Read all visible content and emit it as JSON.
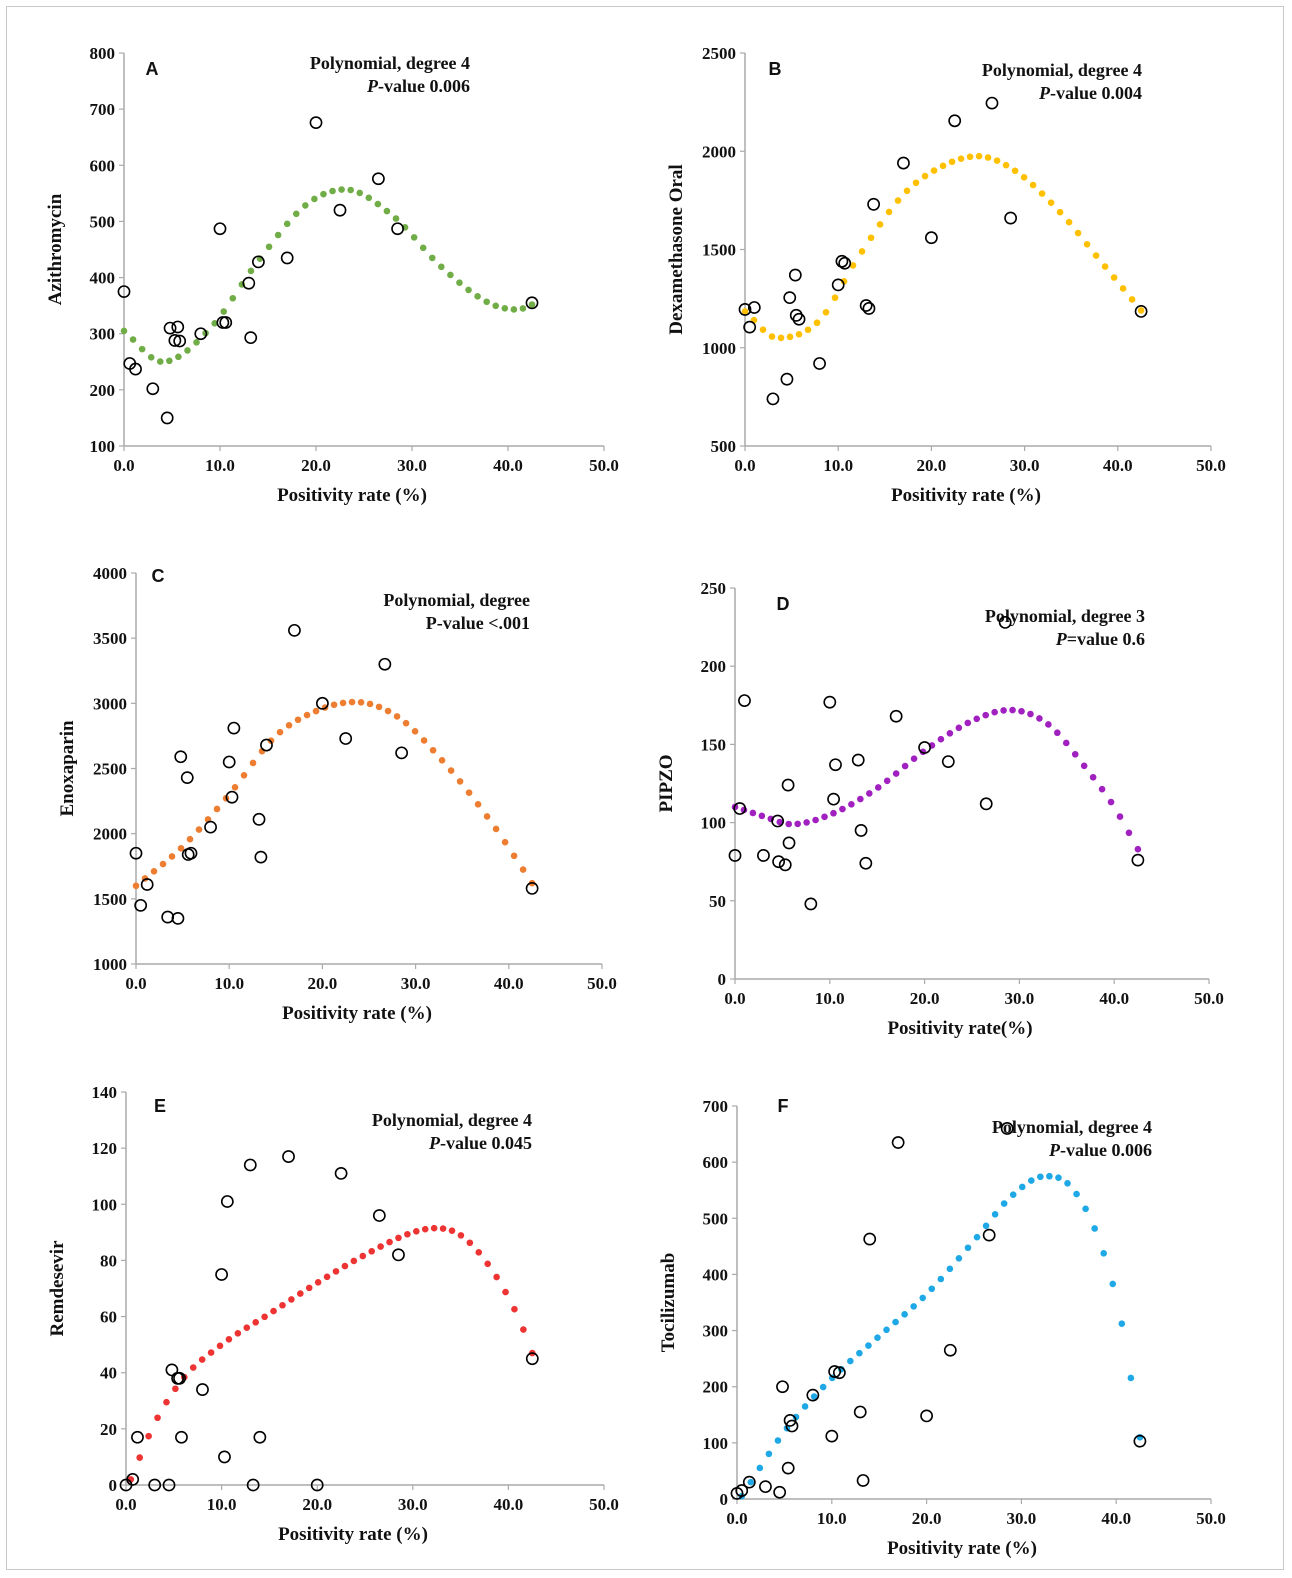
{
  "chart_data": [
    {
      "panel": "A",
      "type": "scatter",
      "ylabel": "Azithromycin",
      "xlabel": "Positivity rate (%)",
      "xlim": [
        0,
        50
      ],
      "ylim": [
        100,
        800
      ],
      "xticks": [
        "0.0",
        "10.0",
        "20.0",
        "30.0",
        "40.0",
        "50.0"
      ],
      "yticks": [
        "100",
        "200",
        "300",
        "400",
        "500",
        "600",
        "700",
        "800"
      ],
      "annotation": [
        "Polynomial, degree 4",
        "P-value 0.006"
      ],
      "trend_color": "#70ad47",
      "trend": {
        "xrange": [
          0,
          42.5
        ],
        "points": [
          [
            0,
            305
          ],
          [
            4,
            250
          ],
          [
            9,
            310
          ],
          [
            14,
            430
          ],
          [
            19,
            530
          ],
          [
            23,
            557
          ],
          [
            28,
            510
          ],
          [
            33,
            420
          ],
          [
            38,
            355
          ],
          [
            41,
            343
          ],
          [
            42.5,
            352
          ]
        ]
      },
      "points": [
        [
          0,
          375
        ],
        [
          0.6,
          247
        ],
        [
          1.2,
          237
        ],
        [
          3,
          202
        ],
        [
          4.5,
          150
        ],
        [
          4.8,
          310
        ],
        [
          5.3,
          288
        ],
        [
          5.6,
          312
        ],
        [
          5.8,
          287
        ],
        [
          8,
          300
        ],
        [
          10,
          487
        ],
        [
          10.3,
          320
        ],
        [
          10.6,
          320
        ],
        [
          13,
          390
        ],
        [
          13.2,
          293
        ],
        [
          14,
          428
        ],
        [
          17,
          435
        ],
        [
          20,
          676
        ],
        [
          22.5,
          520
        ],
        [
          26.5,
          576
        ],
        [
          28.5,
          487
        ],
        [
          42.5,
          355
        ]
      ]
    },
    {
      "panel": "B",
      "type": "scatter",
      "ylabel": "Dexamethasone Oral",
      "xlabel": "Positivity rate (%)",
      "xlim": [
        0,
        50
      ],
      "ylim": [
        500,
        2500
      ],
      "xticks": [
        "0.0",
        "10.0",
        "20.0",
        "30.0",
        "40.0",
        "50.0"
      ],
      "yticks": [
        "500",
        "1000",
        "1500",
        "2000",
        "2500"
      ],
      "annotation": [
        "Polynomial, degree 4",
        "P-value 0.004"
      ],
      "trend_color": "#ffc000",
      "trend": {
        "xrange": [
          0,
          42.5
        ],
        "points": [
          [
            0,
            1185
          ],
          [
            3.5,
            1050
          ],
          [
            8,
            1140
          ],
          [
            12,
            1450
          ],
          [
            17,
            1780
          ],
          [
            21,
            1920
          ],
          [
            25,
            1975
          ],
          [
            29,
            1900
          ],
          [
            34,
            1680
          ],
          [
            38,
            1450
          ],
          [
            42.5,
            1190
          ]
        ]
      },
      "points": [
        [
          0,
          1195
        ],
        [
          0.5,
          1105
        ],
        [
          1,
          1205
        ],
        [
          3,
          740
        ],
        [
          4.5,
          840
        ],
        [
          4.8,
          1255
        ],
        [
          5.4,
          1370
        ],
        [
          5.5,
          1165
        ],
        [
          5.8,
          1145
        ],
        [
          8,
          920
        ],
        [
          10,
          1320
        ],
        [
          10.4,
          1440
        ],
        [
          10.7,
          1430
        ],
        [
          13,
          1215
        ],
        [
          13.3,
          1200
        ],
        [
          13.8,
          1730
        ],
        [
          17,
          1940
        ],
        [
          20,
          1560
        ],
        [
          22.5,
          2155
        ],
        [
          26.5,
          2245
        ],
        [
          28.5,
          1660
        ],
        [
          42.5,
          1185
        ]
      ]
    },
    {
      "panel": "C",
      "type": "scatter",
      "ylabel": "Enoxaparin",
      "xlabel": "Positivity rate (%)",
      "xlim": [
        0,
        50
      ],
      "ylim": [
        1000,
        4000
      ],
      "xticks": [
        "0.0",
        "10.0",
        "20.0",
        "30.0",
        "40.0",
        "50.0"
      ],
      "yticks": [
        "1000",
        "1500",
        "2000",
        "2500",
        "3000",
        "3500",
        "4000"
      ],
      "annotation": [
        "Polynomial, degree",
        "P-value <.001"
      ],
      "trend_color": "#ed7d31",
      "trend": {
        "xrange": [
          0,
          42.5
        ],
        "points": [
          [
            0,
            1600
          ],
          [
            5,
            1900
          ],
          [
            10,
            2300
          ],
          [
            15,
            2750
          ],
          [
            20,
            2960
          ],
          [
            23.5,
            3010
          ],
          [
            28,
            2900
          ],
          [
            33,
            2550
          ],
          [
            38,
            2100
          ],
          [
            42.5,
            1620
          ]
        ]
      },
      "points": [
        [
          0,
          1850
        ],
        [
          0.5,
          1450
        ],
        [
          1.2,
          1610
        ],
        [
          3.4,
          1360
        ],
        [
          4.5,
          1350
        ],
        [
          4.8,
          2590
        ],
        [
          5.5,
          2430
        ],
        [
          5.6,
          1840
        ],
        [
          5.9,
          1850
        ],
        [
          8,
          2050
        ],
        [
          10,
          2550
        ],
        [
          10.3,
          2280
        ],
        [
          10.5,
          2810
        ],
        [
          13.2,
          2110
        ],
        [
          13.4,
          1820
        ],
        [
          14,
          2680
        ],
        [
          17,
          3560
        ],
        [
          20,
          3000
        ],
        [
          22.5,
          2730
        ],
        [
          26.7,
          3300
        ],
        [
          28.5,
          2620
        ],
        [
          42.5,
          1580
        ]
      ]
    },
    {
      "panel": "D",
      "type": "scatter",
      "ylabel": "PIPZO",
      "xlabel": "Positivity rate(%)",
      "xlim": [
        0,
        50
      ],
      "ylim": [
        0,
        250
      ],
      "xticks": [
        "0.0",
        "10.0",
        "20.0",
        "30.0",
        "40.0",
        "50.0"
      ],
      "yticks": [
        "0",
        "50",
        "100",
        "150",
        "200",
        "250"
      ],
      "annotation": [
        "Polynomial, degree 3",
        "P=value 0.6"
      ],
      "trend_color": "#a020c0",
      "trend": {
        "xrange": [
          0,
          42.5
        ],
        "points": [
          [
            0,
            110
          ],
          [
            3,
            104
          ],
          [
            6,
            99
          ],
          [
            10,
            105
          ],
          [
            15,
            122
          ],
          [
            20,
            146
          ],
          [
            25,
            165
          ],
          [
            29,
            172
          ],
          [
            33,
            163
          ],
          [
            37,
            135
          ],
          [
            40,
            110
          ],
          [
            42.5,
            83
          ]
        ]
      },
      "points": [
        [
          0,
          79
        ],
        [
          0.5,
          109
        ],
        [
          1,
          178
        ],
        [
          3,
          79
        ],
        [
          4.5,
          101
        ],
        [
          4.6,
          75
        ],
        [
          5.3,
          73
        ],
        [
          5.6,
          124
        ],
        [
          5.7,
          87
        ],
        [
          8,
          48
        ],
        [
          10,
          177
        ],
        [
          10.4,
          115
        ],
        [
          10.6,
          137
        ],
        [
          13,
          140
        ],
        [
          13.3,
          95
        ],
        [
          13.8,
          74
        ],
        [
          17,
          168
        ],
        [
          20,
          148
        ],
        [
          22.5,
          139
        ],
        [
          26.5,
          112
        ],
        [
          28.5,
          228
        ],
        [
          42.5,
          76
        ]
      ]
    },
    {
      "panel": "E",
      "type": "scatter",
      "ylabel": "Remdesevir",
      "xlabel": "Positivity rate (%)",
      "xlim": [
        0,
        50
      ],
      "ylim": [
        0,
        140
      ],
      "xticks": [
        "0.0",
        "10.0",
        "20.0",
        "30.0",
        "40.0",
        "50.0"
      ],
      "yticks": [
        "0",
        "20",
        "40",
        "60",
        "80",
        "100",
        "120",
        "140"
      ],
      "annotation": [
        "Polynomial, degree 4",
        "P-value 0.045"
      ],
      "trend_color": "#ee3333",
      "trend": {
        "xrange": [
          0.5,
          42.5
        ],
        "points": [
          [
            0.5,
            2
          ],
          [
            3,
            22
          ],
          [
            6,
            38
          ],
          [
            10,
            50
          ],
          [
            15,
            61
          ],
          [
            20,
            72
          ],
          [
            25,
            82
          ],
          [
            30,
            90
          ],
          [
            32.5,
            91.5
          ],
          [
            35,
            89
          ],
          [
            38,
            78
          ],
          [
            41,
            60
          ],
          [
            42.5,
            47
          ]
        ]
      },
      "points": [
        [
          0,
          0
        ],
        [
          0.7,
          2
        ],
        [
          1.2,
          17
        ],
        [
          3,
          0
        ],
        [
          4.5,
          0
        ],
        [
          4.8,
          41
        ],
        [
          5.4,
          38
        ],
        [
          5.6,
          38
        ],
        [
          5.8,
          17
        ],
        [
          8,
          34
        ],
        [
          10,
          75
        ],
        [
          10.3,
          10
        ],
        [
          10.6,
          101
        ],
        [
          13,
          114
        ],
        [
          13.3,
          0
        ],
        [
          14,
          17
        ],
        [
          17,
          117
        ],
        [
          20,
          0
        ],
        [
          22.5,
          111
        ],
        [
          26.5,
          96
        ],
        [
          28.5,
          82
        ],
        [
          42.5,
          45
        ]
      ]
    },
    {
      "panel": "F",
      "type": "scatter",
      "ylabel": "Tocilizumab",
      "xlabel": "Positivity rate (%)",
      "xlim": [
        0,
        50
      ],
      "ylim": [
        0,
        700
      ],
      "xticks": [
        "0.0",
        "10.0",
        "20.0",
        "30.0",
        "40.0",
        "50.0"
      ],
      "yticks": [
        "0",
        "100",
        "200",
        "300",
        "400",
        "500",
        "600",
        "700"
      ],
      "annotation": [
        "Polynomial, degree 4",
        "P-value 0.006"
      ],
      "trend_color": "#1ea8e6",
      "trend": {
        "xrange": [
          0.5,
          42.5
        ],
        "points": [
          [
            0.5,
            5
          ],
          [
            5,
            120
          ],
          [
            10,
            215
          ],
          [
            15,
            290
          ],
          [
            20,
            365
          ],
          [
            25,
            460
          ],
          [
            29,
            540
          ],
          [
            32.5,
            575
          ],
          [
            35,
            560
          ],
          [
            38,
            470
          ],
          [
            40.5,
            320
          ],
          [
            42.5,
            110
          ]
        ]
      },
      "points": [
        [
          0,
          10
        ],
        [
          0.5,
          15
        ],
        [
          1.3,
          30
        ],
        [
          3,
          22
        ],
        [
          4.5,
          12
        ],
        [
          4.8,
          200
        ],
        [
          5.4,
          55
        ],
        [
          5.6,
          140
        ],
        [
          5.8,
          130
        ],
        [
          8,
          185
        ],
        [
          10,
          112
        ],
        [
          10.3,
          227
        ],
        [
          10.8,
          225
        ],
        [
          13,
          155
        ],
        [
          13.3,
          33
        ],
        [
          14,
          463
        ],
        [
          17,
          635
        ],
        [
          20,
          148
        ],
        [
          22.5,
          265
        ],
        [
          26.6,
          470
        ],
        [
          28.5,
          660
        ],
        [
          42.5,
          103
        ]
      ]
    }
  ]
}
